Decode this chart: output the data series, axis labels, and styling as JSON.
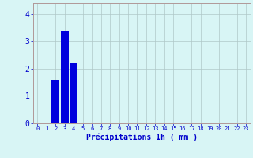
{
  "hours": [
    0,
    1,
    2,
    3,
    4,
    5,
    6,
    7,
    8,
    9,
    10,
    11,
    12,
    13,
    14,
    15,
    16,
    17,
    18,
    19,
    20,
    21,
    22,
    23
  ],
  "values": [
    0,
    0,
    1.6,
    3.4,
    2.2,
    0,
    0,
    0,
    0,
    0,
    0,
    0,
    0,
    0,
    0,
    0,
    0,
    0,
    0,
    0,
    0,
    0,
    0,
    0
  ],
  "bar_color": "#0000dd",
  "background_color": "#d8f5f5",
  "grid_color": "#afc8c8",
  "axis_color": "#b09898",
  "text_color": "#0000cc",
  "xlabel": "Précipitations 1h ( mm )",
  "ylim": [
    0,
    4.4
  ],
  "yticks": [
    0,
    1,
    2,
    3,
    4
  ],
  "xlim": [
    -0.5,
    23.5
  ]
}
